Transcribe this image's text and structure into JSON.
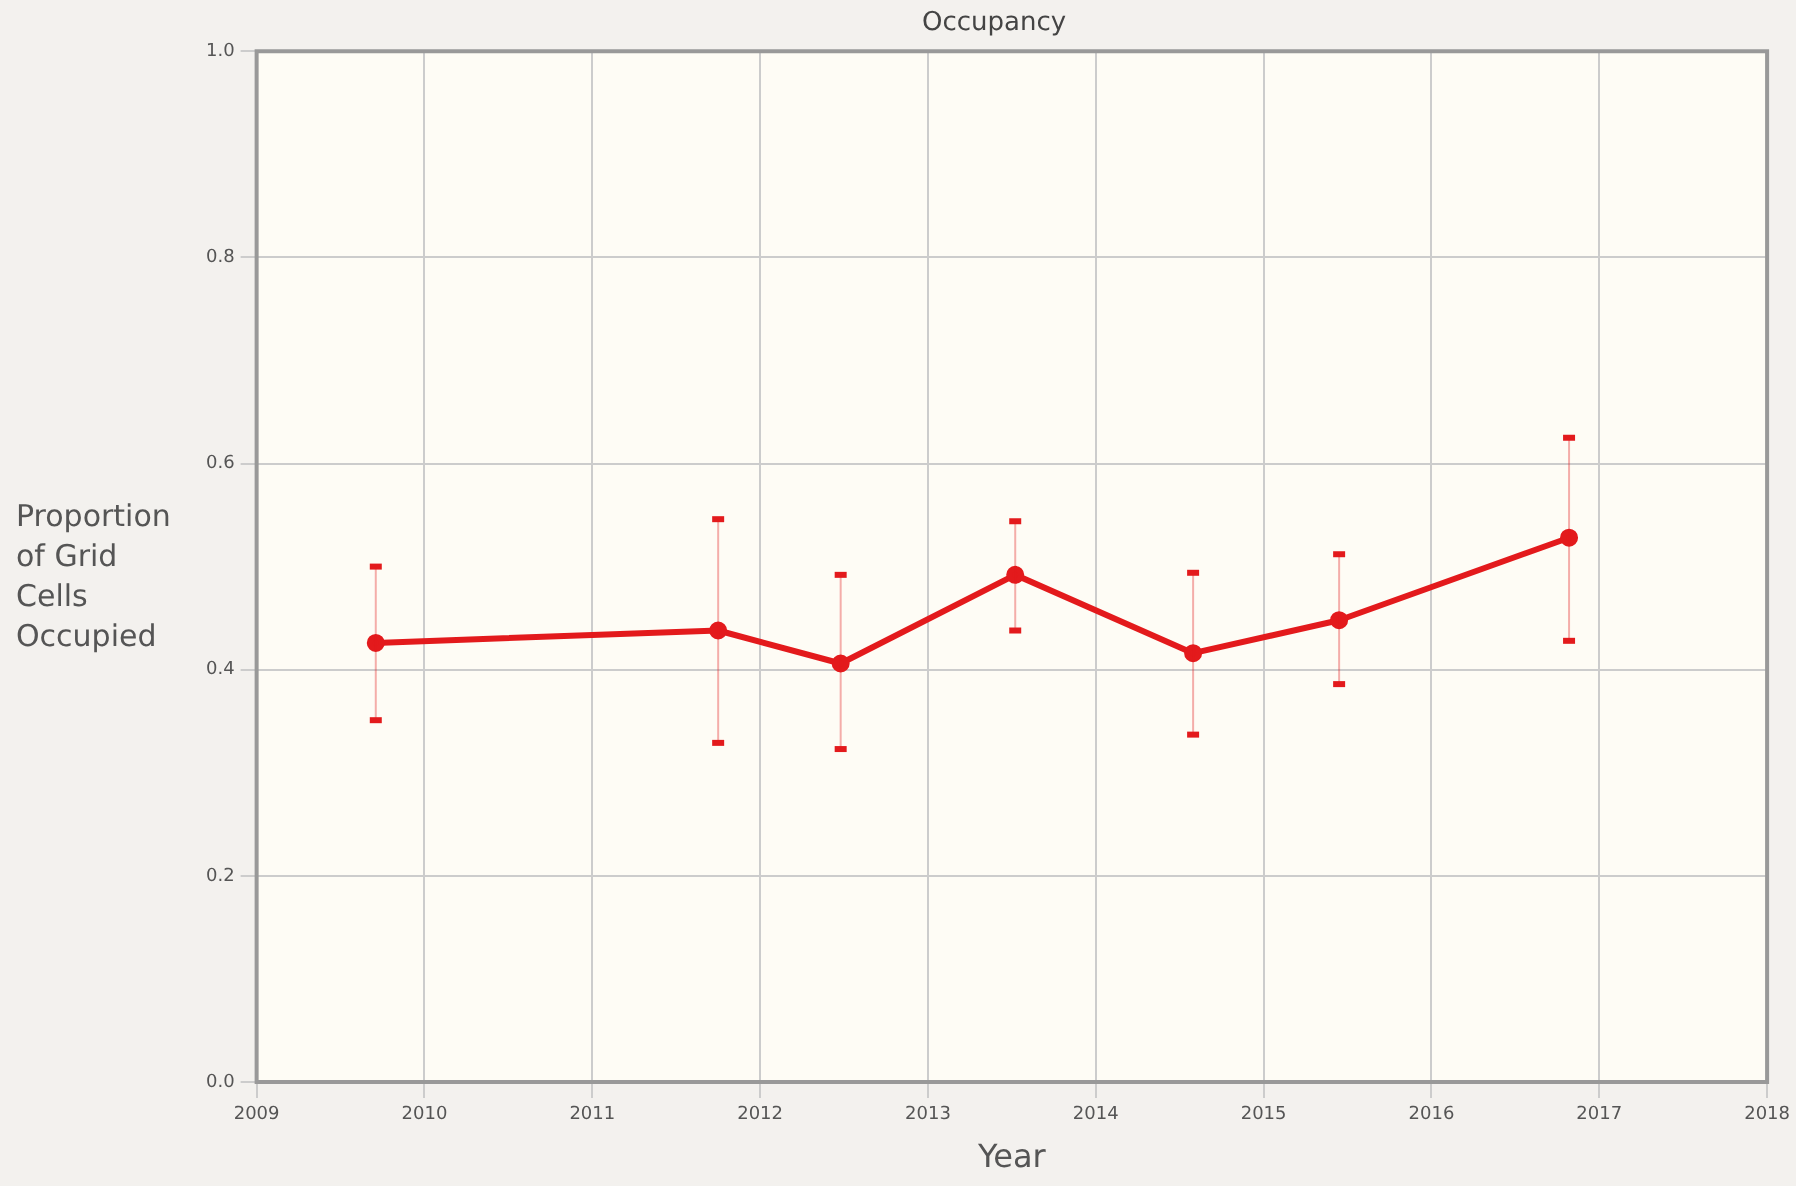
{
  "chart_data": {
    "type": "line",
    "title": "Occupancy",
    "xlabel": "Year",
    "ylabel": "Proportion of Grid Cells Occupied",
    "x": [
      2009.71,
      2011.75,
      2012.48,
      2013.52,
      2014.58,
      2015.45,
      2016.82
    ],
    "series": [
      {
        "color": "#e31a1c",
        "values": [
          0.426,
          0.438,
          0.406,
          0.492,
          0.416,
          0.448,
          0.528
        ],
        "errors": [
          [
            0.351,
            0.5
          ],
          [
            0.329,
            0.546
          ],
          [
            0.323,
            0.492
          ],
          [
            0.438,
            0.544
          ],
          [
            0.337,
            0.494
          ],
          [
            0.386,
            0.512
          ],
          [
            0.428,
            0.625
          ]
        ]
      }
    ],
    "xlim": [
      2009,
      2018
    ],
    "xticks": [
      2009,
      2010,
      2011,
      2012,
      2013,
      2014,
      2015,
      2016,
      2017,
      2018
    ],
    "ylim": [
      0,
      1
    ],
    "yticks": [
      {
        "value": 0,
        "label": "0.0"
      },
      {
        "value": 0.2,
        "label": "0.2"
      },
      {
        "value": 0.4,
        "label": "0.4"
      },
      {
        "value": 0.6,
        "label": "0.6"
      },
      {
        "value": 0.8,
        "label": "0.8"
      },
      {
        "value": 1,
        "label": "1.0"
      }
    ],
    "grid": true,
    "legend": false,
    "marker": "circle",
    "line_style": "solid"
  }
}
